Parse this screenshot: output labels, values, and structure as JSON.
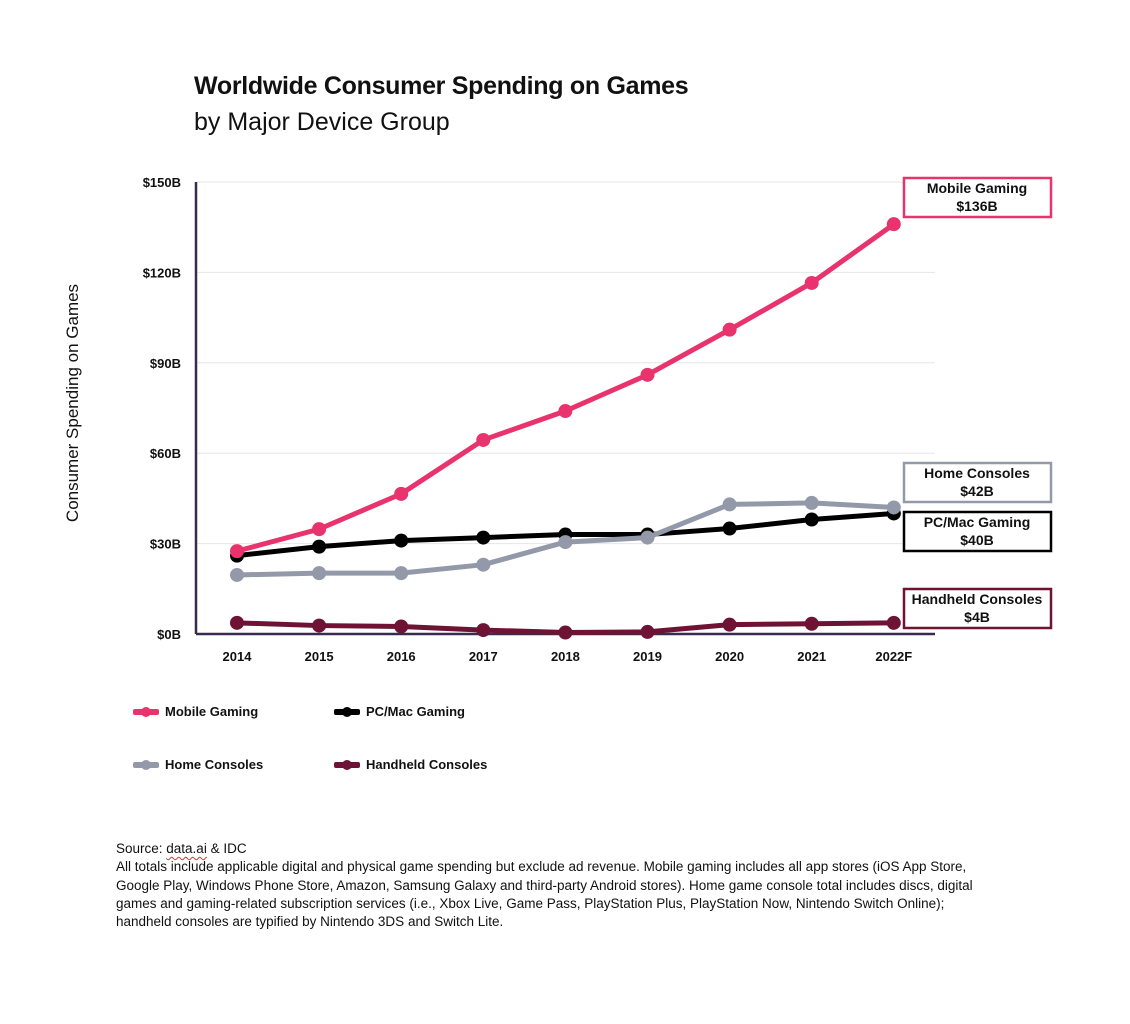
{
  "header": {
    "title": "Worldwide Consumer Spending on Games",
    "subtitle": "by Major Device Group"
  },
  "chart_data": {
    "type": "line",
    "title": "Worldwide Consumer Spending on Games",
    "subtitle": "by Major Device Group",
    "xlabel": "",
    "ylabel": "Consumer Spending on Games",
    "x": [
      "2014",
      "2015",
      "2016",
      "2017",
      "2018",
      "2019",
      "2020",
      "2021",
      "2022F"
    ],
    "ylim": [
      0,
      150
    ],
    "yticks": [
      0,
      30,
      60,
      90,
      120,
      150
    ],
    "ytick_labels": [
      "$0B",
      "$30B",
      "$60B",
      "$90B",
      "$120B",
      "$150B"
    ],
    "grid": "horizontal",
    "legend_position": "bottom-left",
    "series": [
      {
        "name": "Mobile Gaming",
        "color": "#e8336f",
        "values": [
          27.5,
          34.8,
          46.5,
          64.4,
          74,
          86,
          101,
          116.5,
          136
        ],
        "callout": {
          "label": "Mobile Gaming",
          "value": "$136B"
        }
      },
      {
        "name": "PC/Mac Gaming",
        "color": "#000000",
        "values": [
          26,
          29,
          31,
          32,
          33,
          33,
          35,
          38,
          40
        ],
        "callout": {
          "label": "PC/Mac Gaming",
          "value": "$40B"
        }
      },
      {
        "name": "Home Consoles",
        "color": "#9399a8",
        "values": [
          19.6,
          20.2,
          20.2,
          23,
          30.5,
          32,
          43,
          43.5,
          42
        ],
        "callout": {
          "label": "Home Consoles",
          "value": "$42B"
        }
      },
      {
        "name": "Handheld Consoles",
        "color": "#6e1333",
        "values": [
          3.7,
          2.8,
          2.5,
          1.3,
          0.5,
          0.7,
          3.1,
          3.4,
          3.7
        ],
        "callout": {
          "label": "Handheld Consoles",
          "value": "$4B"
        }
      }
    ],
    "axis_color": "#3b2a4f",
    "grid_color": "#e6e6e6"
  },
  "legend": [
    {
      "label": "Mobile Gaming",
      "color": "#e8336f"
    },
    {
      "label": "PC/Mac Gaming",
      "color": "#000000"
    },
    {
      "label": "Home Consoles",
      "color": "#9399a8"
    },
    {
      "label": "Handheld Consoles",
      "color": "#6e1333"
    }
  ],
  "footnote": {
    "source_prefix": "Source: ",
    "source_link": "data.ai",
    "source_suffix": " & IDC",
    "body": "All totals include applicable digital and physical game spending but exclude ad revenue. Mobile gaming includes all app stores (iOS App Store, Google Play, Windows Phone Store, Amazon, Samsung Galaxy and third-party Android stores). Home game console total includes discs, digital games and gaming-related subscription services (i.e., Xbox Live, Game Pass, PlayStation Plus, PlayStation Now, Nintendo Switch Online); handheld consoles are typified by Nintendo 3DS and Switch Lite."
  }
}
